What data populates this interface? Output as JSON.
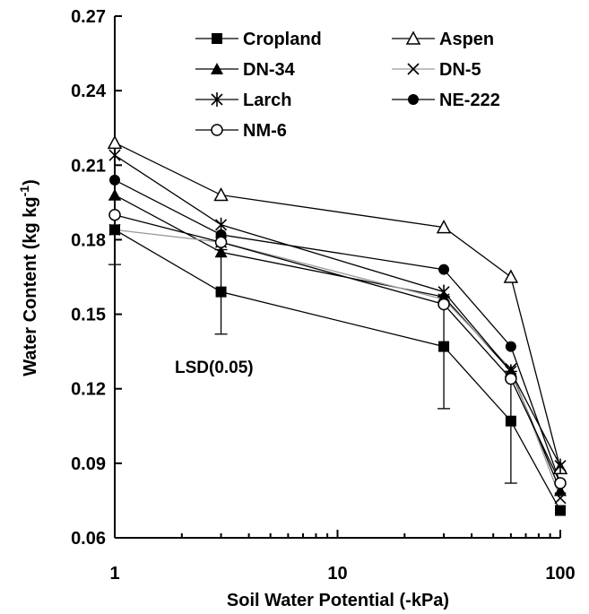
{
  "chart_data": {
    "type": "line",
    "xlabel": "Soil Water Potential (-kPa)",
    "ylabel_main": "Water Content (kg kg",
    "ylabel_sup": "-1",
    "ylabel_end": ")",
    "x_scale": "log",
    "xlim": [
      1,
      100
    ],
    "ylim": [
      0.06,
      0.27
    ],
    "x_ticks": [
      1,
      10,
      100
    ],
    "x_tick_labels": [
      "1",
      "10",
      "100"
    ],
    "y_ticks": [
      0.06,
      0.09,
      0.12,
      0.15,
      0.18,
      0.21,
      0.24,
      0.27
    ],
    "y_tick_labels": [
      "0.06",
      "0.09",
      "0.12",
      "0.15",
      "0.18",
      "0.21",
      "0.24",
      "0.27"
    ],
    "grid": false,
    "legend_position": "top-right",
    "x": [
      1,
      3,
      30,
      60,
      100
    ],
    "series": [
      {
        "name": "Cropland",
        "marker": "filled-square",
        "values": [
          0.184,
          0.159,
          0.137,
          0.107,
          0.071
        ]
      },
      {
        "name": "Aspen",
        "marker": "open-triangle",
        "values": [
          0.219,
          0.198,
          0.185,
          0.165,
          0.088
        ]
      },
      {
        "name": "DN-34",
        "marker": "filled-triangle",
        "values": [
          0.198,
          0.175,
          0.157,
          0.127,
          0.079
        ]
      },
      {
        "name": "DN-5",
        "marker": "x",
        "values": [
          0.184,
          0.179,
          0.156,
          0.128,
          0.076
        ]
      },
      {
        "name": "Larch",
        "marker": "asterisk",
        "values": [
          0.214,
          0.186,
          0.159,
          0.127,
          0.089
        ]
      },
      {
        "name": "NE-222",
        "marker": "filled-circle",
        "values": [
          0.204,
          0.182,
          0.168,
          0.137,
          0.082
        ]
      },
      {
        "name": "NM-6",
        "marker": "open-circle",
        "values": [
          0.19,
          0.179,
          0.154,
          0.124,
          0.082
        ]
      }
    ],
    "error_bars": {
      "label": "LSD(0.05)",
      "x": [
        1,
        3,
        30,
        60
      ],
      "lower": [
        0.17,
        0.142,
        0.112,
        0.082
      ],
      "upper": [
        0.196,
        0.176,
        0.157,
        0.127
      ]
    }
  }
}
